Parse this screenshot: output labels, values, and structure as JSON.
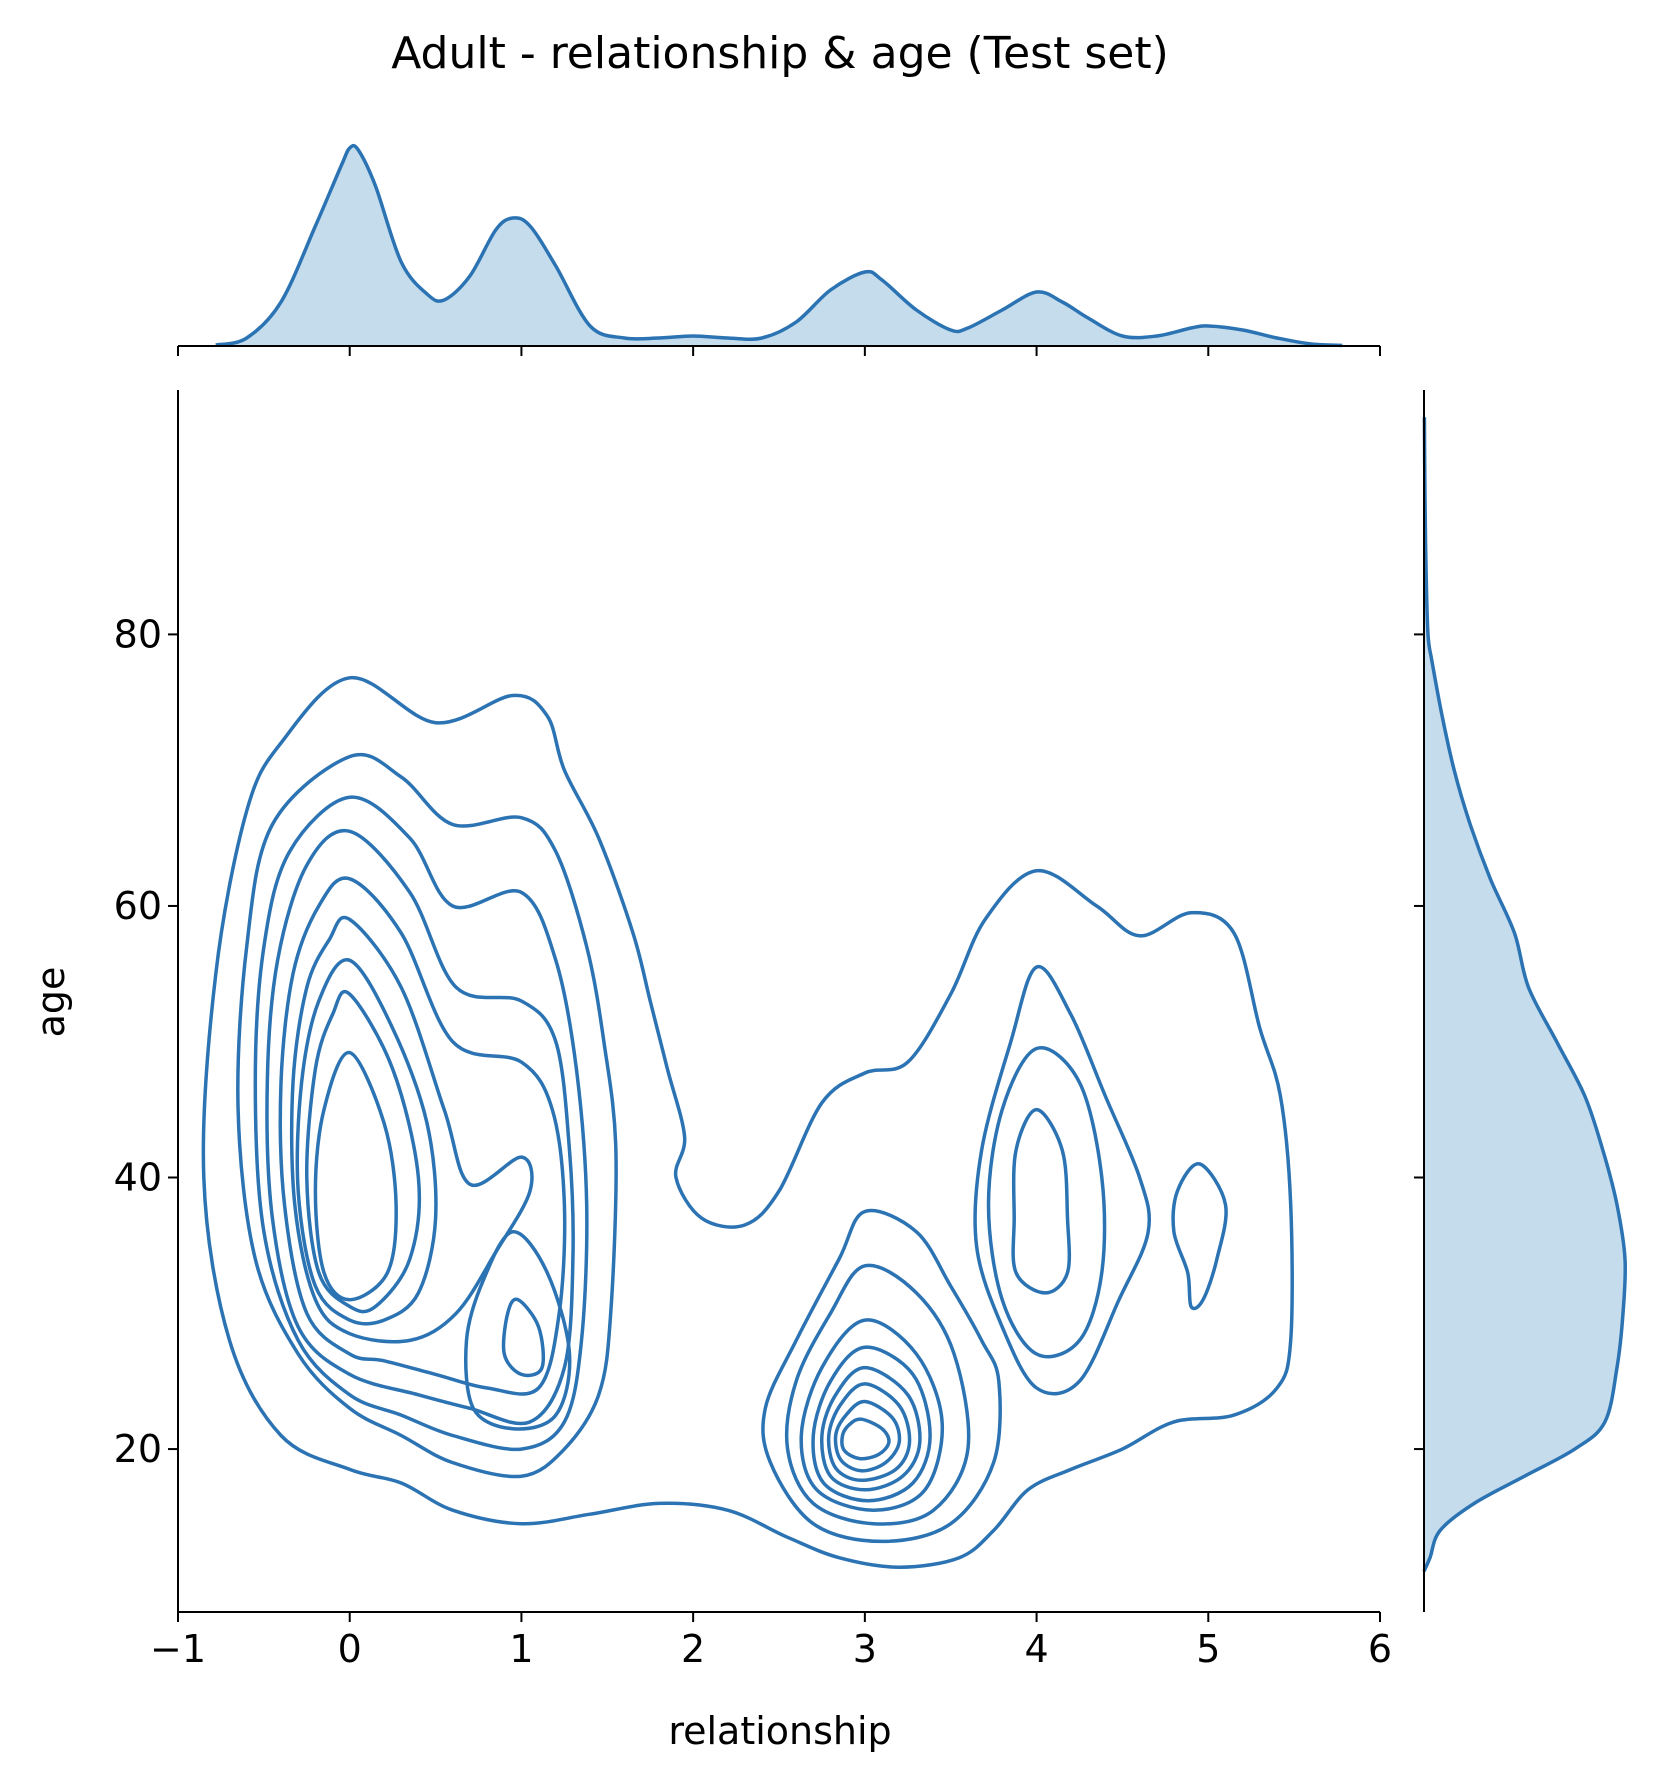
{
  "chart_data": {
    "type": "kde-joint",
    "title": "Adult - relationship & age (Test set)",
    "xlabel": "relationship",
    "ylabel": "age",
    "xlim": [
      -1,
      6
    ],
    "ylim": [
      8,
      98
    ],
    "x_ticks": [
      {
        "value": -1,
        "label": "−1"
      },
      {
        "value": 0,
        "label": "0"
      },
      {
        "value": 1,
        "label": "1"
      },
      {
        "value": 2,
        "label": "2"
      },
      {
        "value": 3,
        "label": "3"
      },
      {
        "value": 4,
        "label": "4"
      },
      {
        "value": 5,
        "label": "5"
      },
      {
        "value": 6,
        "label": "6"
      }
    ],
    "y_ticks": [
      {
        "value": 20,
        "label": "20"
      },
      {
        "value": 40,
        "label": "40"
      },
      {
        "value": 60,
        "label": "60"
      },
      {
        "value": 80,
        "label": "80"
      }
    ],
    "grid": false,
    "color": "#2b73b3",
    "fill_color": "#c5dcec",
    "marginal_x": {
      "ymax": 1.0,
      "points": [
        [
          -0.78,
          0.005
        ],
        [
          -0.6,
          0.04
        ],
        [
          -0.4,
          0.22
        ],
        [
          -0.2,
          0.6
        ],
        [
          -0.05,
          0.9
        ],
        [
          0,
          0.99
        ],
        [
          0.05,
          0.98
        ],
        [
          0.15,
          0.8
        ],
        [
          0.3,
          0.42
        ],
        [
          0.45,
          0.26
        ],
        [
          0.55,
          0.23
        ],
        [
          0.7,
          0.35
        ],
        [
          0.85,
          0.58
        ],
        [
          0.95,
          0.64
        ],
        [
          1.05,
          0.6
        ],
        [
          1.2,
          0.4
        ],
        [
          1.4,
          0.1
        ],
        [
          1.6,
          0.04
        ],
        [
          1.8,
          0.04
        ],
        [
          2,
          0.05
        ],
        [
          2.2,
          0.04
        ],
        [
          2.4,
          0.04
        ],
        [
          2.6,
          0.12
        ],
        [
          2.8,
          0.28
        ],
        [
          3,
          0.37
        ],
        [
          3.1,
          0.33
        ],
        [
          3.3,
          0.18
        ],
        [
          3.5,
          0.08
        ],
        [
          3.6,
          0.09
        ],
        [
          3.8,
          0.18
        ],
        [
          4,
          0.27
        ],
        [
          4.15,
          0.22
        ],
        [
          4.3,
          0.14
        ],
        [
          4.5,
          0.05
        ],
        [
          4.7,
          0.05
        ],
        [
          4.9,
          0.09
        ],
        [
          5,
          0.1
        ],
        [
          5.2,
          0.08
        ],
        [
          5.4,
          0.04
        ],
        [
          5.6,
          0.01
        ],
        [
          5.78,
          0.003
        ]
      ]
    },
    "marginal_y": {
      "xmax": 1.0,
      "points": [
        [
          11,
          0.0
        ],
        [
          12,
          0.03
        ],
        [
          14,
          0.08
        ],
        [
          16,
          0.25
        ],
        [
          18,
          0.5
        ],
        [
          20,
          0.75
        ],
        [
          22,
          0.9
        ],
        [
          26,
          0.96
        ],
        [
          30,
          0.99
        ],
        [
          34,
          1.0
        ],
        [
          38,
          0.96
        ],
        [
          42,
          0.89
        ],
        [
          46,
          0.8
        ],
        [
          50,
          0.66
        ],
        [
          54,
          0.52
        ],
        [
          58,
          0.45
        ],
        [
          62,
          0.33
        ],
        [
          66,
          0.23
        ],
        [
          70,
          0.15
        ],
        [
          74,
          0.09
        ],
        [
          78,
          0.04
        ],
        [
          80,
          0.02
        ],
        [
          85,
          0.01
        ],
        [
          90,
          0.005
        ],
        [
          96,
          0.002
        ]
      ]
    },
    "contours": [
      [
        [
          0.0,
          76.8
        ],
        [
          0.5,
          73.5
        ],
        [
          0.95,
          75.5
        ],
        [
          1.15,
          74.0
        ],
        [
          1.25,
          70.0
        ],
        [
          1.45,
          65.0
        ],
        [
          1.65,
          58.0
        ],
        [
          1.75,
          53.0
        ],
        [
          1.85,
          48.0
        ],
        [
          1.95,
          43.0
        ],
        [
          1.9,
          40.0
        ],
        [
          2.05,
          37.0
        ],
        [
          2.3,
          36.5
        ],
        [
          2.5,
          39.0
        ],
        [
          2.75,
          45.5
        ],
        [
          3.0,
          47.7
        ],
        [
          3.25,
          48.5
        ],
        [
          3.5,
          53.5
        ],
        [
          3.7,
          59.0
        ],
        [
          4.0,
          62.6
        ],
        [
          4.35,
          60.0
        ],
        [
          4.6,
          57.8
        ],
        [
          4.9,
          59.5
        ],
        [
          5.15,
          58.0
        ],
        [
          5.3,
          51.0
        ],
        [
          5.42,
          46.0
        ],
        [
          5.48,
          38.0
        ],
        [
          5.48,
          28.0
        ],
        [
          5.4,
          24.5
        ],
        [
          5.15,
          22.5
        ],
        [
          4.8,
          22.0
        ],
        [
          4.5,
          20.0
        ],
        [
          4.2,
          18.5
        ],
        [
          3.95,
          17.0
        ],
        [
          3.75,
          14.0
        ],
        [
          3.55,
          12.0
        ],
        [
          3.2,
          11.3
        ],
        [
          2.85,
          12.0
        ],
        [
          2.55,
          13.5
        ],
        [
          2.2,
          15.5
        ],
        [
          1.8,
          16.0
        ],
        [
          1.4,
          15.2
        ],
        [
          1.0,
          14.5
        ],
        [
          0.6,
          15.5
        ],
        [
          0.3,
          17.5
        ],
        [
          0.0,
          18.5
        ],
        [
          -0.4,
          21.0
        ],
        [
          -0.7,
          28.0
        ],
        [
          -0.85,
          40.0
        ],
        [
          -0.78,
          55.0
        ],
        [
          -0.6,
          67.0
        ],
        [
          -0.4,
          72.0
        ]
      ],
      [
        [
          0.0,
          71.0
        ],
        [
          0.3,
          69.5
        ],
        [
          0.6,
          66.0
        ],
        [
          1.0,
          66.5
        ],
        [
          1.2,
          64.0
        ],
        [
          1.38,
          57.0
        ],
        [
          1.48,
          50.0
        ],
        [
          1.55,
          42.0
        ],
        [
          1.52,
          30.0
        ],
        [
          1.45,
          24.0
        ],
        [
          1.25,
          20.0
        ],
        [
          1.0,
          18.0
        ],
        [
          0.6,
          19.0
        ],
        [
          0.3,
          21.0
        ],
        [
          0.0,
          23.0
        ],
        [
          -0.3,
          27.0
        ],
        [
          -0.55,
          34.0
        ],
        [
          -0.65,
          45.0
        ],
        [
          -0.6,
          57.0
        ],
        [
          -0.45,
          66.0
        ]
      ],
      [
        [
          0.0,
          68.0
        ],
        [
          0.35,
          65.0
        ],
        [
          0.6,
          60.0
        ],
        [
          1.0,
          61.0
        ],
        [
          1.2,
          56.0
        ],
        [
          1.32,
          48.0
        ],
        [
          1.38,
          38.0
        ],
        [
          1.35,
          28.0
        ],
        [
          1.25,
          22.0
        ],
        [
          1.0,
          20.0
        ],
        [
          0.6,
          21.0
        ],
        [
          0.3,
          22.5
        ],
        [
          0.0,
          24.0
        ],
        [
          -0.3,
          28.0
        ],
        [
          -0.5,
          36.0
        ],
        [
          -0.55,
          47.0
        ],
        [
          -0.5,
          57.0
        ],
        [
          -0.35,
          64.0
        ]
      ],
      [
        [
          0.0,
          65.5
        ],
        [
          0.35,
          61.0
        ],
        [
          0.62,
          54.0
        ],
        [
          1.0,
          53.0
        ],
        [
          1.2,
          50.0
        ],
        [
          1.28,
          42.0
        ],
        [
          1.3,
          34.0
        ],
        [
          1.25,
          26.0
        ],
        [
          1.05,
          22.0
        ],
        [
          0.7,
          23.0
        ],
        [
          0.4,
          24.0
        ],
        [
          0.0,
          25.5
        ],
        [
          -0.3,
          29.0
        ],
        [
          -0.45,
          37.0
        ],
        [
          -0.48,
          47.0
        ],
        [
          -0.42,
          56.0
        ],
        [
          -0.25,
          63.0
        ]
      ],
      [
        [
          0.0,
          62.0
        ],
        [
          0.3,
          58.0
        ],
        [
          0.6,
          50.0
        ],
        [
          1.0,
          48.5
        ],
        [
          1.18,
          45.0
        ],
        [
          1.25,
          38.0
        ],
        [
          1.22,
          30.0
        ],
        [
          1.1,
          24.5
        ],
        [
          0.8,
          24.5
        ],
        [
          0.5,
          25.5
        ],
        [
          0.2,
          26.5
        ],
        [
          0.0,
          27.0
        ],
        [
          -0.25,
          30.0
        ],
        [
          -0.38,
          38.0
        ],
        [
          -0.4,
          47.0
        ],
        [
          -0.33,
          55.0
        ],
        [
          -0.18,
          60.0
        ]
      ],
      [
        [
          0.0,
          59.0
        ],
        [
          0.3,
          54.0
        ],
        [
          0.55,
          45.0
        ],
        [
          0.7,
          39.5
        ],
        [
          1.0,
          41.5
        ],
        [
          1.05,
          39.0
        ],
        [
          0.85,
          34.5
        ],
        [
          0.62,
          30.0
        ],
        [
          0.35,
          28.0
        ],
        [
          0.0,
          28.5
        ],
        [
          -0.2,
          31.0
        ],
        [
          -0.32,
          38.0
        ],
        [
          -0.33,
          47.0
        ],
        [
          -0.25,
          54.0
        ],
        [
          -0.12,
          57.5
        ]
      ],
      [
        [
          0.0,
          56.0
        ],
        [
          0.25,
          51.0
        ],
        [
          0.45,
          44.0
        ],
        [
          0.5,
          37.0
        ],
        [
          0.4,
          31.5
        ],
        [
          0.2,
          29.5
        ],
        [
          0.0,
          29.5
        ],
        [
          -0.2,
          32.0
        ],
        [
          -0.3,
          39.0
        ],
        [
          -0.28,
          47.0
        ],
        [
          -0.18,
          53.0
        ]
      ],
      [
        [
          0.0,
          53.5
        ],
        [
          0.25,
          48.0
        ],
        [
          0.4,
          40.0
        ],
        [
          0.35,
          34.0
        ],
        [
          0.15,
          30.5
        ],
        [
          0.0,
          30.5
        ],
        [
          -0.18,
          33.0
        ],
        [
          -0.25,
          40.0
        ],
        [
          -0.2,
          48.0
        ],
        [
          -0.1,
          52.0
        ]
      ],
      [
        [
          0.0,
          49.2
        ],
        [
          0.2,
          44.0
        ],
        [
          0.27,
          38.0
        ],
        [
          0.22,
          33.0
        ],
        [
          0.0,
          31.0
        ],
        [
          -0.15,
          33.0
        ],
        [
          -0.2,
          39.0
        ],
        [
          -0.15,
          45.0
        ]
      ],
      [
        [
          0.95,
          36.0
        ],
        [
          1.15,
          33.0
        ],
        [
          1.28,
          27.0
        ],
        [
          1.2,
          22.5
        ],
        [
          0.95,
          21.5
        ],
        [
          0.72,
          23.0
        ],
        [
          0.68,
          28.0
        ],
        [
          0.78,
          32.5
        ]
      ],
      [
        [
          0.98,
          31.0
        ],
        [
          1.1,
          29.0
        ],
        [
          1.12,
          26.0
        ],
        [
          1.0,
          25.5
        ],
        [
          0.9,
          27.0
        ],
        [
          0.92,
          30.0
        ]
      ],
      [
        [
          3.0,
          37.5
        ],
        [
          3.3,
          36.0
        ],
        [
          3.5,
          32.0
        ],
        [
          3.68,
          28.0
        ],
        [
          3.78,
          25.0
        ],
        [
          3.75,
          19.0
        ],
        [
          3.5,
          14.5
        ],
        [
          3.1,
          13.2
        ],
        [
          2.7,
          14.5
        ],
        [
          2.45,
          19.0
        ],
        [
          2.42,
          23.0
        ],
        [
          2.6,
          28.0
        ],
        [
          2.85,
          34.0
        ]
      ],
      [
        [
          3.0,
          33.5
        ],
        [
          3.3,
          31.5
        ],
        [
          3.52,
          27.0
        ],
        [
          3.6,
          20.0
        ],
        [
          3.4,
          15.5
        ],
        [
          3.05,
          14.5
        ],
        [
          2.7,
          16.0
        ],
        [
          2.55,
          20.0
        ],
        [
          2.6,
          25.0
        ],
        [
          2.8,
          30.0
        ]
      ],
      [
        [
          3.0,
          29.5
        ],
        [
          3.3,
          27.0
        ],
        [
          3.45,
          22.0
        ],
        [
          3.35,
          17.0
        ],
        [
          3.05,
          15.5
        ],
        [
          2.72,
          17.0
        ],
        [
          2.63,
          21.0
        ],
        [
          2.75,
          26.0
        ]
      ],
      [
        [
          3.0,
          27.5
        ],
        [
          3.28,
          25.5
        ],
        [
          3.38,
          21.0
        ],
        [
          3.28,
          17.5
        ],
        [
          3.02,
          16.2
        ],
        [
          2.76,
          17.5
        ],
        [
          2.7,
          21.0
        ],
        [
          2.8,
          25.0
        ]
      ],
      [
        [
          3.0,
          26.0
        ],
        [
          3.25,
          24.0
        ],
        [
          3.32,
          20.5
        ],
        [
          3.22,
          18.0
        ],
        [
          3.0,
          17.0
        ],
        [
          2.8,
          18.0
        ],
        [
          2.75,
          21.0
        ],
        [
          2.83,
          24.0
        ]
      ],
      [
        [
          3.0,
          24.8
        ],
        [
          3.2,
          23.2
        ],
        [
          3.26,
          20.5
        ],
        [
          3.18,
          18.5
        ],
        [
          2.98,
          17.7
        ],
        [
          2.83,
          18.6
        ],
        [
          2.79,
          21.0
        ],
        [
          2.86,
          23.3
        ]
      ],
      [
        [
          3.0,
          23.5
        ],
        [
          3.16,
          22.3
        ],
        [
          3.2,
          20.5
        ],
        [
          3.12,
          19.0
        ],
        [
          2.98,
          18.4
        ],
        [
          2.86,
          19.2
        ],
        [
          2.83,
          21.0
        ],
        [
          2.89,
          22.5
        ]
      ],
      [
        [
          2.98,
          22.2
        ],
        [
          3.1,
          21.5
        ],
        [
          3.14,
          20.5
        ],
        [
          3.08,
          19.6
        ],
        [
          2.97,
          19.3
        ],
        [
          2.88,
          19.9
        ],
        [
          2.87,
          21.0
        ],
        [
          2.91,
          21.8
        ]
      ],
      [
        [
          4.0,
          55.5
        ],
        [
          4.2,
          52.0
        ],
        [
          4.4,
          46.0
        ],
        [
          4.6,
          40.0
        ],
        [
          4.65,
          36.0
        ],
        [
          4.48,
          31.0
        ],
        [
          4.25,
          25.0
        ],
        [
          4.0,
          24.5
        ],
        [
          3.8,
          29.0
        ],
        [
          3.65,
          35.0
        ],
        [
          3.68,
          42.0
        ],
        [
          3.85,
          50.0
        ]
      ],
      [
        [
          4.0,
          49.5
        ],
        [
          4.25,
          47.0
        ],
        [
          4.38,
          40.0
        ],
        [
          4.38,
          33.0
        ],
        [
          4.25,
          28.0
        ],
        [
          4.0,
          27.0
        ],
        [
          3.8,
          31.0
        ],
        [
          3.72,
          38.0
        ],
        [
          3.8,
          45.0
        ]
      ],
      [
        [
          4.0,
          45.0
        ],
        [
          4.15,
          42.0
        ],
        [
          4.18,
          37.0
        ],
        [
          4.18,
          33.0
        ],
        [
          4.05,
          31.5
        ],
        [
          3.88,
          33.0
        ],
        [
          3.87,
          37.0
        ],
        [
          3.88,
          42.0
        ]
      ],
      [
        [
          4.95,
          41.0
        ],
        [
          5.1,
          38.0
        ],
        [
          5.05,
          34.0
        ],
        [
          4.97,
          31.0
        ],
        [
          4.9,
          30.5
        ],
        [
          4.88,
          33.0
        ],
        [
          4.8,
          36.0
        ],
        [
          4.82,
          39.0
        ]
      ]
    ]
  }
}
